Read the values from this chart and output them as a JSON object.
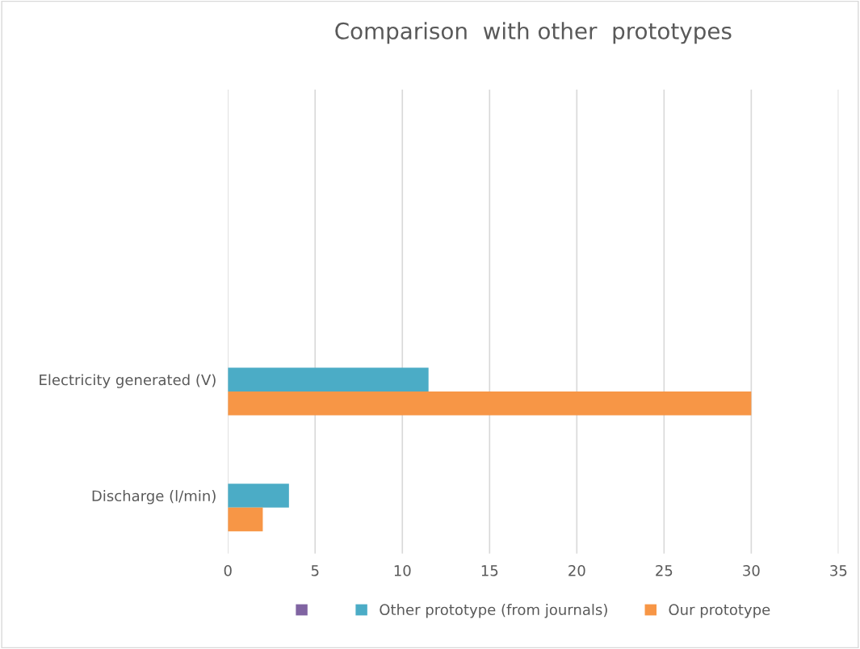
{
  "chart_data": {
    "type": "bar",
    "orientation": "horizontal",
    "title": "Comparison  with other  prototypes",
    "categories": [
      null,
      null,
      "Electricity generated (V)",
      "Discharge (l/min)"
    ],
    "series": [
      {
        "color": "#8064a2",
        "values": [
          null,
          null,
          null,
          null
        ]
      },
      {
        "name": "Other prototype (from journals)",
        "color": "#4bacc6",
        "values": [
          null,
          null,
          11.5,
          3.5
        ]
      },
      {
        "name": "Our prototype",
        "color": "#f79646",
        "values": [
          null,
          null,
          30,
          2
        ]
      }
    ],
    "xlim": [
      0,
      35
    ],
    "xticks": [
      0,
      5,
      10,
      15,
      20,
      25,
      30,
      35
    ],
    "grid": "x",
    "legend": "bottom"
  }
}
